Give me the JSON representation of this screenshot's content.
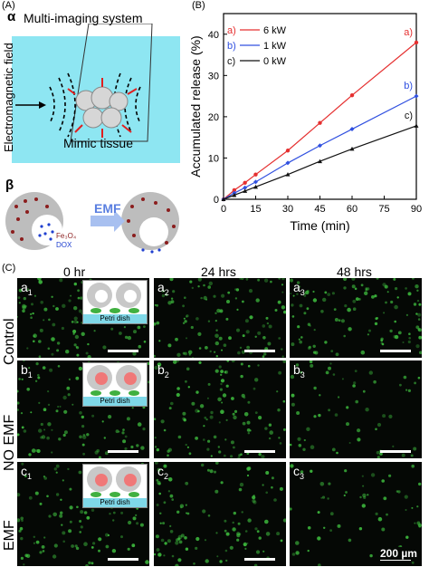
{
  "panelA": {
    "tag": "(A)",
    "alpha": "α",
    "system": "Multi-imaging system",
    "field": "Electromagnetic field",
    "tissue": "Mimic tissue",
    "beta": "β",
    "emf": "EMF",
    "fe3o4": "Fe₃O₄",
    "dox": "DOX"
  },
  "panelB": {
    "tag": "(B)"
  },
  "chart_data": {
    "type": "line",
    "xlabel": "Time (min)",
    "ylabel": "Accumulated release (%)",
    "xlim": [
      0,
      90
    ],
    "ylim": [
      0,
      45
    ],
    "xticks": [
      "0",
      "15",
      "30",
      "45",
      "60",
      "75",
      "90"
    ],
    "yticks": [
      "0",
      "10",
      "20",
      "30",
      "40"
    ],
    "x": [
      0,
      5,
      10,
      15,
      30,
      45,
      60,
      90
    ],
    "series": [
      {
        "name": "6 kW",
        "marker": "a)",
        "color": "#e53030",
        "values": [
          0,
          2.2,
          4.0,
          6.0,
          11.8,
          18.5,
          25.2,
          38.0
        ]
      },
      {
        "name": "1 kW",
        "marker": "b)",
        "color": "#3050e0",
        "values": [
          0,
          1.5,
          2.8,
          4.2,
          8.8,
          13.0,
          17.0,
          25.0
        ]
      },
      {
        "name": "0 kW",
        "marker": "c)",
        "color": "#111111",
        "values": [
          0,
          1.0,
          2.0,
          3.0,
          6.0,
          9.2,
          12.2,
          17.8
        ]
      }
    ],
    "legend_position": "top-left"
  },
  "panelC": {
    "tag": "(C)",
    "columns": [
      "0 hr",
      "24 hrs",
      "48 hrs"
    ],
    "rows": [
      "Control",
      "NO EMF",
      "EMF"
    ],
    "cells": [
      [
        {
          "l": "a",
          "s": "1"
        },
        {
          "l": "a",
          "s": "2"
        },
        {
          "l": "a",
          "s": "3"
        }
      ],
      [
        {
          "l": "b",
          "s": "1"
        },
        {
          "l": "b",
          "s": "2"
        },
        {
          "l": "b",
          "s": "3"
        }
      ],
      [
        {
          "l": "c",
          "s": "1"
        },
        {
          "l": "c",
          "s": "2"
        },
        {
          "l": "c",
          "s": "3"
        }
      ]
    ],
    "petri": "Petri dish",
    "scale": "200 µm"
  }
}
